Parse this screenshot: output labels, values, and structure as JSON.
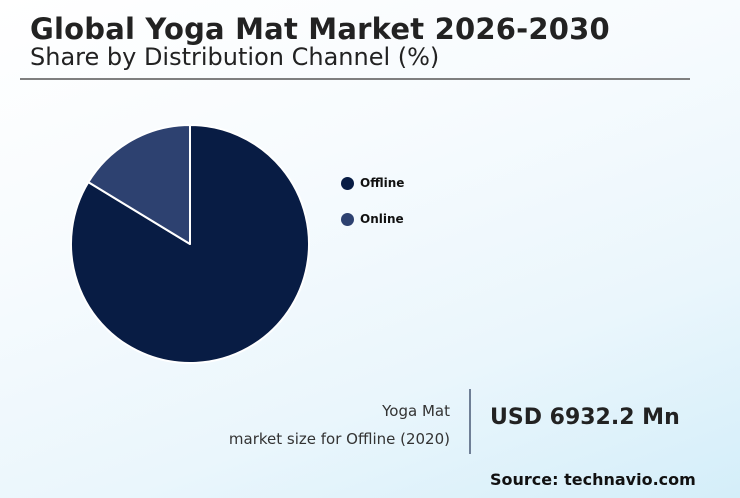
{
  "header": {
    "title": "Global Yoga Mat Market 2026-2030",
    "subtitle": "Share by Distribution Channel (%)"
  },
  "legend": {
    "items": [
      {
        "label": "Offline",
        "color": "#081c44"
      },
      {
        "label": "Online",
        "color": "#2d4170"
      }
    ]
  },
  "stat": {
    "line1": "Yoga Mat",
    "line2": "market size for Offline (2020)",
    "value": "USD 6932.2 Mn"
  },
  "footer": {
    "source": "Source: technavio.com"
  },
  "chart_data": {
    "type": "pie",
    "title": "Global Yoga Mat Market 2026-2030",
    "subtitle": "Share by Distribution Channel (%)",
    "categories": [
      "Offline",
      "Online"
    ],
    "values": [
      83.7,
      16.3
    ],
    "colors": [
      "#081c44",
      "#2d4170"
    ],
    "start_angle": "12 o'clock",
    "direction": "clockwise (Offline first)",
    "legend_position": "right",
    "annotation": "Yoga Mat market size for Offline (2020): USD 6932.2 Mn",
    "source": "Source: technavio.com"
  }
}
